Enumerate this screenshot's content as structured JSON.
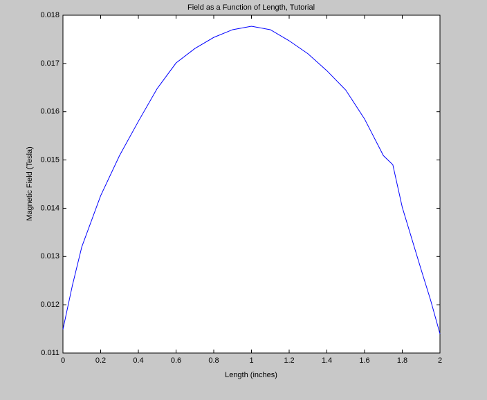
{
  "chart_data": {
    "type": "line",
    "title": "Field as a Function of Length, Tutorial",
    "x_label": "Length (inches)",
    "y_label": "Magnetic Field (Tesla)",
    "x": [
      0,
      0.05,
      0.1,
      0.2,
      0.3,
      0.4,
      0.5,
      0.6,
      0.7,
      0.8,
      0.9,
      1.0,
      1.1,
      1.2,
      1.3,
      1.4,
      1.5,
      1.6,
      1.7,
      1.75,
      1.8,
      1.9,
      1.95,
      2.0
    ],
    "series": [
      {
        "color": "#0000ff",
        "values": [
          0.01149,
          0.0124,
          0.0132,
          0.01426,
          0.01509,
          0.0158,
          0.01648,
          0.01701,
          0.01731,
          0.01754,
          0.0177,
          0.01777,
          0.0177,
          0.01747,
          0.0172,
          0.01685,
          0.01645,
          0.01585,
          0.01509,
          0.0149,
          0.01402,
          0.01273,
          0.0121,
          0.0114
        ]
      }
    ],
    "xlim": [
      0,
      2
    ],
    "xticks": [
      0,
      0.2,
      0.4,
      0.6,
      0.8,
      1,
      1.2,
      1.4,
      1.6,
      1.8,
      2
    ],
    "ylim": [
      0.011,
      0.018
    ],
    "yticks": [
      0.011,
      0.012,
      0.013,
      0.014,
      0.015,
      0.016,
      0.017,
      0.018
    ]
  }
}
